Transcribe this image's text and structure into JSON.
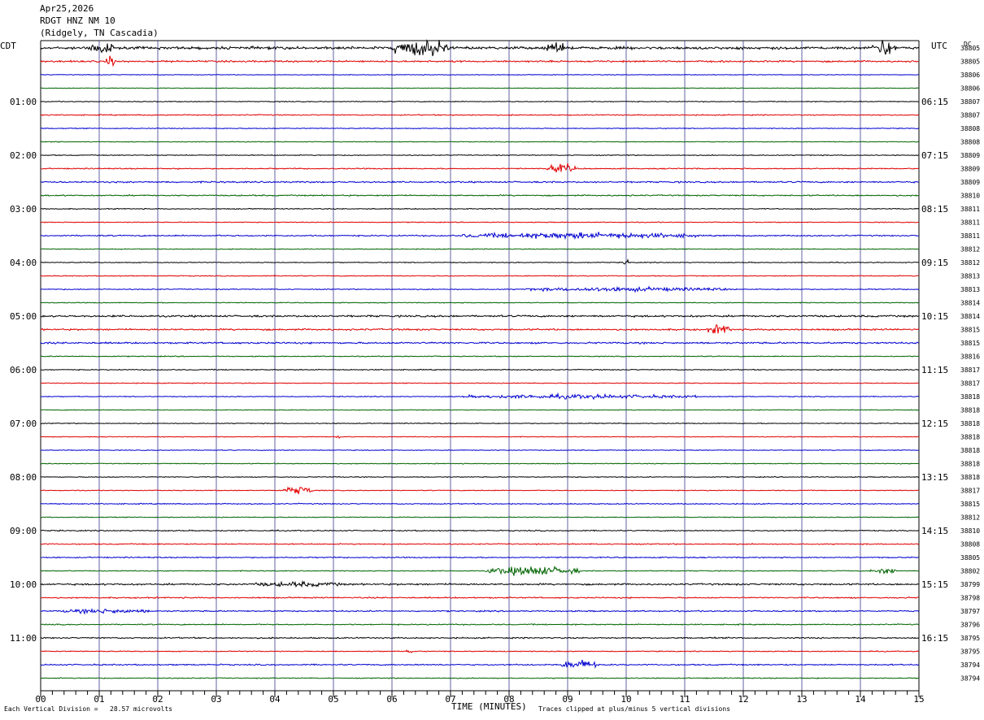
{
  "header": {
    "date": "Apr25,2026",
    "station": "RDGT HNZ NM 10",
    "location": "(Ridgely, TN Cascadia)"
  },
  "left_timezone": "CDT",
  "right_timezone": "UTC",
  "dc_label": "DC",
  "footer": {
    "scale_note": "Each Vertical Division =   28.57 microvolts",
    "xlabel": "TIME (MINUTES)",
    "clip_note": "Traces clipped at plus/minus 5 vertical divisions"
  },
  "colors": {
    "black": "#000000",
    "red": "#e00000",
    "blue": "#0000d0",
    "green": "#006400",
    "grid": "#3a3a8c"
  },
  "chart_data": {
    "type": "line",
    "title": "RDGT HNZ NM 10",
    "xlabel": "TIME (MINUTES)",
    "xlim": [
      0,
      15
    ],
    "x_ticks": [
      "00",
      "01",
      "02",
      "03",
      "04",
      "05",
      "06",
      "07",
      "08",
      "09",
      "10",
      "11",
      "12",
      "13",
      "14",
      "15"
    ],
    "rows_per_hour": 4,
    "row_minutes": 15,
    "trace_color_cycle": [
      "black",
      "red",
      "blue",
      "green"
    ],
    "left_hour_labels": [
      "01:00",
      "02:00",
      "03:00",
      "04:00",
      "05:00",
      "06:00",
      "07:00",
      "08:00",
      "09:00",
      "10:00",
      "11:00"
    ],
    "right_hour_labels": [
      "06:15",
      "07:15",
      "08:15",
      "09:15",
      "10:15",
      "11:15",
      "12:15",
      "13:15",
      "14:15",
      "15:15",
      "16:15"
    ],
    "dc_offsets": [
      "38805",
      "38805",
      "38806",
      "38806",
      "38807",
      "38807",
      "38808",
      "38808",
      "38809",
      "38809",
      "38809",
      "38810",
      "38811",
      "38811",
      "38811",
      "38812",
      "38812",
      "38813",
      "38813",
      "38814",
      "38814",
      "38815",
      "38815",
      "38816",
      "38817",
      "38817",
      "38818",
      "38818",
      "38818",
      "38818",
      "38818",
      "38818",
      "38818",
      "38817",
      "38815",
      "38812",
      "38810",
      "38808",
      "38805",
      "38802",
      "38799",
      "38798",
      "38797",
      "38796",
      "38795",
      "38795",
      "38794",
      "38794"
    ],
    "noise_level": [
      1.4,
      0.9,
      0.35,
      0.35,
      0.45,
      0.6,
      0.45,
      0.4,
      0.45,
      0.6,
      0.8,
      0.7,
      0.5,
      0.45,
      0.7,
      0.45,
      0.45,
      0.5,
      0.5,
      0.45,
      1.0,
      0.9,
      0.9,
      0.5,
      0.5,
      0.45,
      0.45,
      0.4,
      0.45,
      0.4,
      0.4,
      0.45,
      0.45,
      0.45,
      0.55,
      0.45,
      0.6,
      0.6,
      0.6,
      0.5,
      0.9,
      0.7,
      0.7,
      0.6,
      0.7,
      0.5,
      0.7,
      0.5
    ],
    "events": [
      {
        "row": 0,
        "minute": 1.0,
        "amp": 6,
        "dur": 0.5
      },
      {
        "row": 0,
        "minute": 6.5,
        "amp": 9,
        "dur": 1.0
      },
      {
        "row": 0,
        "minute": 8.8,
        "amp": 6,
        "dur": 0.3
      },
      {
        "row": 0,
        "minute": 14.4,
        "amp": 9,
        "dur": 0.4
      },
      {
        "row": 1,
        "minute": 1.2,
        "amp": 5,
        "dur": 0.2
      },
      {
        "row": 9,
        "minute": 8.9,
        "amp": 5,
        "dur": 0.5
      },
      {
        "row": 14,
        "minute": 9.2,
        "amp": 3,
        "dur": 4.0
      },
      {
        "row": 16,
        "minute": 10.0,
        "amp": 4,
        "dur": 0.1
      },
      {
        "row": 18,
        "minute": 10.0,
        "amp": 2,
        "dur": 3.5
      },
      {
        "row": 21,
        "minute": 11.6,
        "amp": 5,
        "dur": 0.4
      },
      {
        "row": 26,
        "minute": 9.2,
        "amp": 2,
        "dur": 4.0
      },
      {
        "row": 29,
        "minute": 5.1,
        "amp": 2,
        "dur": 0.1
      },
      {
        "row": 33,
        "minute": 4.4,
        "amp": 5,
        "dur": 0.5
      },
      {
        "row": 39,
        "minute": 8.4,
        "amp": 5,
        "dur": 1.6
      },
      {
        "row": 39,
        "minute": 14.4,
        "amp": 3,
        "dur": 0.5
      },
      {
        "row": 40,
        "minute": 4.4,
        "amp": 2,
        "dur": 1.5
      },
      {
        "row": 42,
        "minute": 1.1,
        "amp": 2,
        "dur": 1.5
      },
      {
        "row": 45,
        "minute": 6.3,
        "amp": 3,
        "dur": 0.1
      },
      {
        "row": 46,
        "minute": 9.2,
        "amp": 5,
        "dur": 0.6
      }
    ]
  }
}
